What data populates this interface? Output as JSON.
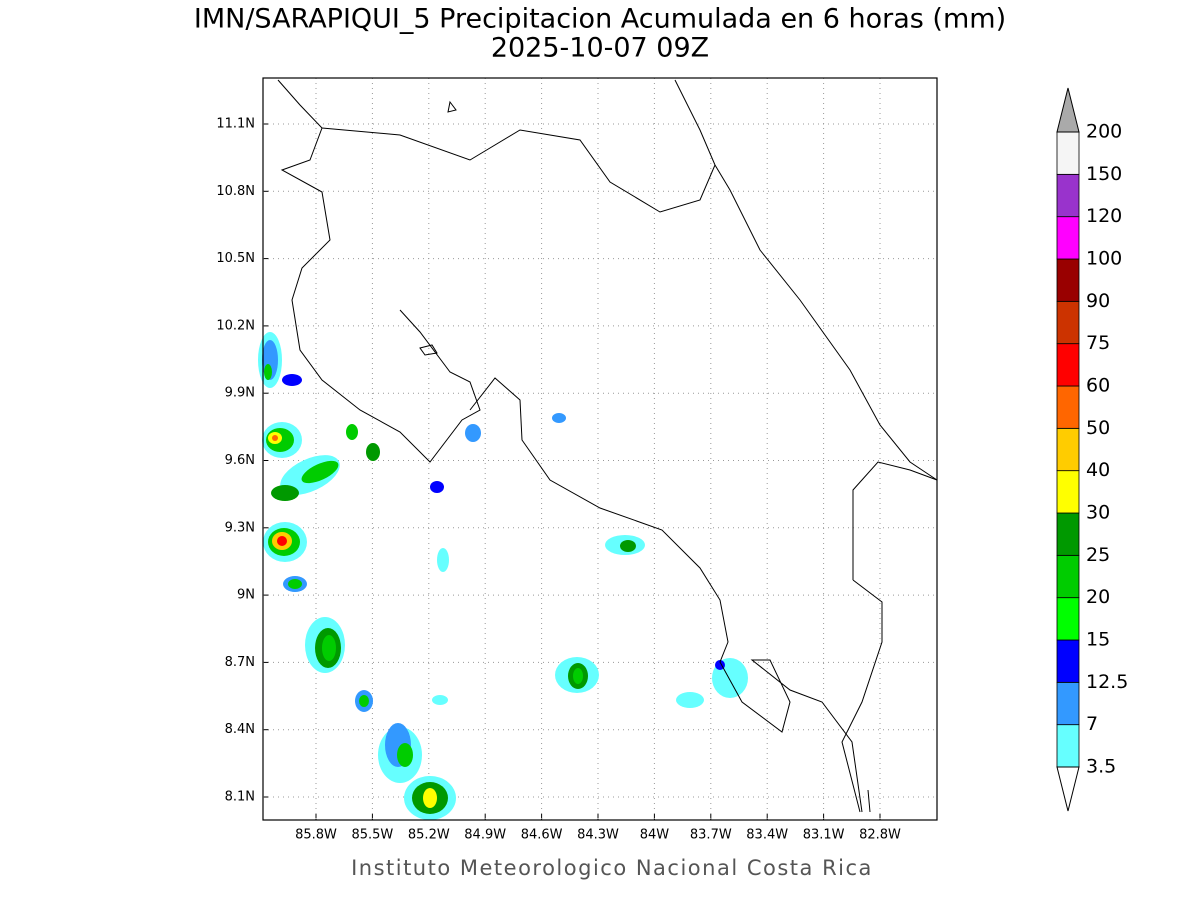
{
  "title": "IMN/SARAPIQUI_5 Precipitacion Acumulada en 6 horas (mm)",
  "subtitle": "2025-10-07 09Z",
  "map": {
    "lat_ticks": [
      "11.1N",
      "10.8N",
      "10.5N",
      "10.2N",
      "9.9N",
      "9.6N",
      "9.3N",
      "9N",
      "8.7N",
      "8.4N",
      "8.1N"
    ],
    "lon_ticks": [
      "85.8W",
      "85.5W",
      "85.2W",
      "84.9W",
      "84.6W",
      "84.3W",
      "84W",
      "83.7W",
      "83.4W",
      "83.1W",
      "82.8W"
    ],
    "grid": true
  },
  "colorbar": {
    "levels": [
      3.5,
      7,
      12.5,
      15,
      20,
      25,
      30,
      40,
      50,
      60,
      75,
      90,
      100,
      120,
      150,
      200
    ],
    "colors": [
      "#66ffff",
      "#3399ff",
      "#0000ff",
      "#00ff00",
      "#00cc00",
      "#009900",
      "#ffff00",
      "#ffcc00",
      "#ff6600",
      "#ff0000",
      "#cc3300",
      "#990000",
      "#ff00ff",
      "#9933cc",
      "#f5f5f5"
    ],
    "under_color": "#ffffff",
    "over_color": "#aaaaaa"
  },
  "footer": "Instituto Meteorologico Nacional Costa Rica"
}
